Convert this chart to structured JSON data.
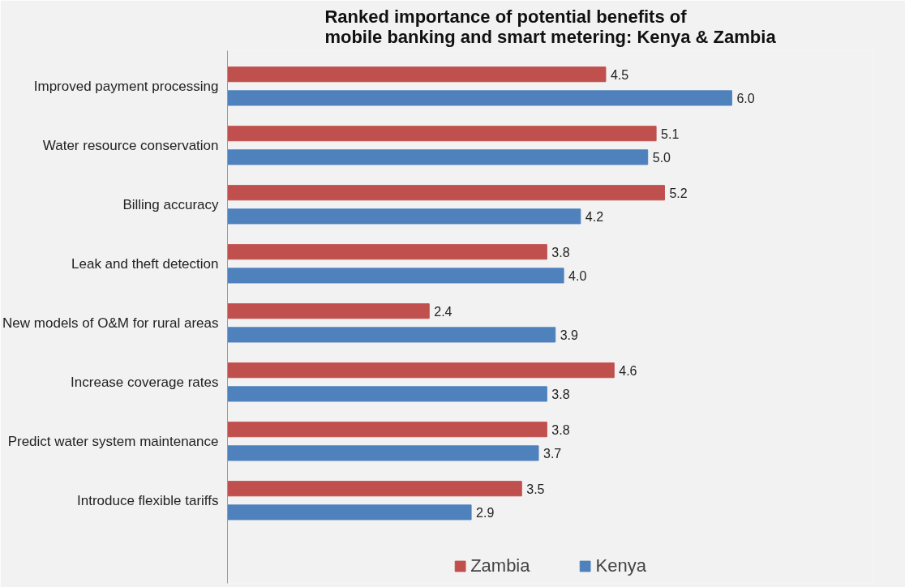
{
  "chart_data": {
    "type": "bar",
    "orientation": "horizontal",
    "title": "Ranked importance of potential benefits  of\nmobile banking and smart metering: Kenya & Zambia",
    "categories": [
      "Improved payment processing",
      "Water resource conservation",
      "Billing accuracy",
      "Leak and theft detection",
      "New models of O&M for rural areas",
      "Increase coverage rates",
      "Predict water system maintenance",
      "Introduce flexible tariffs"
    ],
    "series": [
      {
        "name": "Zambia",
        "color": "#c0504d",
        "values": [
          4.5,
          5.1,
          5.2,
          3.8,
          2.4,
          4.6,
          3.8,
          3.5
        ],
        "value_labels": [
          "4.5",
          "5.1",
          "5.2",
          "3.8",
          "2.4",
          "4.6",
          "3.8",
          "3.5"
        ]
      },
      {
        "name": "Kenya",
        "color": "#4f81bd",
        "values": [
          6.0,
          5.0,
          4.2,
          4.0,
          3.9,
          3.8,
          3.7,
          2.9
        ],
        "value_labels": [
          "6.0",
          "5.0",
          "4.2",
          "4.0",
          "3.9",
          "3.8",
          "3.7",
          "2.9"
        ]
      }
    ],
    "data_labels": true,
    "grid": false,
    "legend": "bottom",
    "tick_labels": "y"
  }
}
